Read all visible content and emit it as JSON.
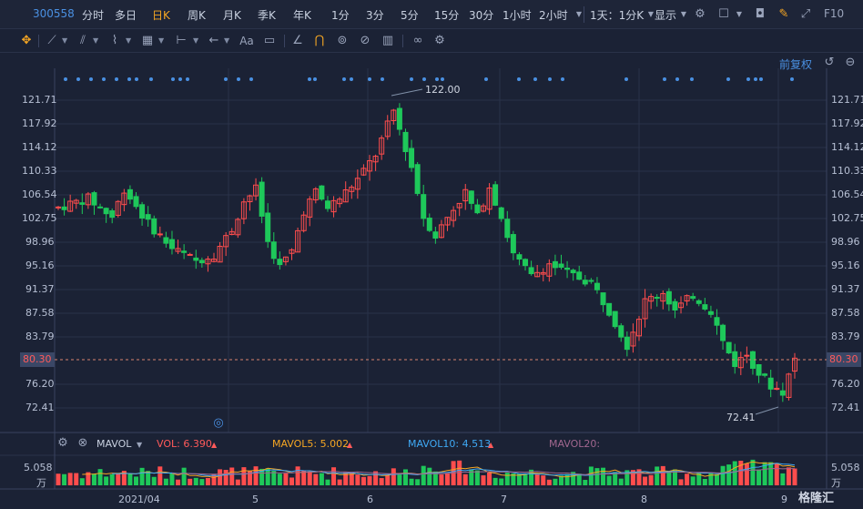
{
  "toolbar": {
    "code": "300558",
    "periods": [
      "分时",
      "多日",
      "日K",
      "周K",
      "月K",
      "季K",
      "年K",
      "1分",
      "3分",
      "5分",
      "15分",
      "30分",
      "1小时",
      "2小时"
    ],
    "active_period": "日K",
    "period_picker": "1天：1分K",
    "display_label": "显示",
    "f10_label": "F10"
  },
  "tools": {
    "text_tool_label": "Aa",
    "adjust_label": "前复权"
  },
  "price_axis": {
    "left_ticks": [
      "121.71",
      "117.92",
      "114.12",
      "110.33",
      "106.54",
      "102.75",
      "98.96",
      "95.16",
      "91.37",
      "87.58",
      "83.79",
      "80.30",
      "76.20",
      "72.41"
    ],
    "right_ticks": [
      "121.71",
      "117.92",
      "114.12",
      "110.33",
      "106.54",
      "102.75",
      "98.96",
      "95.16",
      "91.37",
      "87.58",
      "83.79",
      "80.30",
      "76.20",
      "72.41"
    ],
    "current_price": "80.30",
    "high_label": "122.00",
    "low_label": "72.41"
  },
  "volume_panel": {
    "indicator": "MAVOL",
    "vol_label": "VOL: 6.390",
    "mavol5_label": "MAVOL5: 5.002",
    "mavol10_label": "MAVOL10: 4.513",
    "mavol20_label": "MAVOL20:",
    "top_tick": "5.058",
    "unit": "万",
    "colors": {
      "vol": "#ff5a5a",
      "mavol5": "#f5a623",
      "mavol10": "#3fa9f5",
      "mavol20": "#a1678f"
    }
  },
  "date_axis": [
    "2021/04",
    "5",
    "6",
    "7",
    "8",
    "9"
  ],
  "watermark": "格隆汇",
  "colors": {
    "up": "#ff4d4d",
    "down": "#1ec85a",
    "background": "#1b2235",
    "grid": "#2a3249",
    "accent": "#f5a623",
    "link": "#4a90e2"
  },
  "chart_data": {
    "type": "candlestick",
    "title": "300558",
    "ylim": [
      70.0,
      124.0
    ],
    "x": [
      "2021-04",
      "2021-05",
      "2021-06",
      "2021-07",
      "2021-08",
      "2021-09"
    ],
    "high": 122.0,
    "low": 72.41,
    "last": 80.3,
    "volume_top": 5.058
  }
}
